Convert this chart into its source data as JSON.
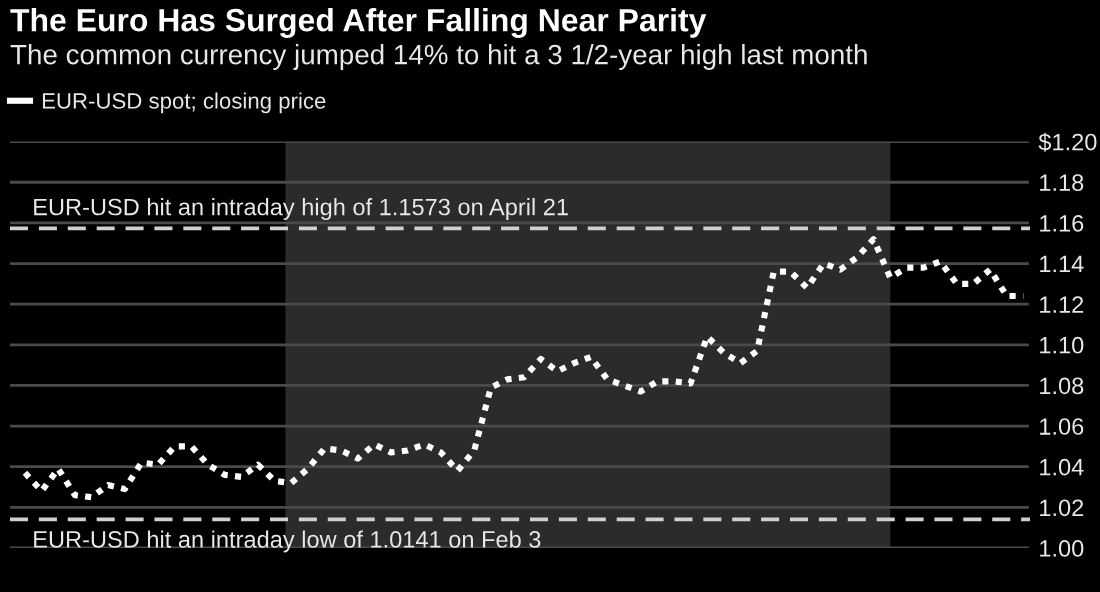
{
  "chart_data": {
    "type": "line",
    "title": "The Euro Has Surged After Falling Near Parity",
    "subtitle": "The common currency jumped 14% to hit a 3 1/2-year high last month",
    "categories": [
      null,
      null,
      null,
      null,
      null,
      null,
      null,
      null,
      null,
      null,
      null,
      null,
      null,
      null,
      null,
      null,
      null,
      null,
      null,
      null,
      null,
      null,
      null,
      null,
      null,
      null,
      null,
      null,
      null,
      null,
      null,
      null,
      null,
      null,
      null,
      null,
      null,
      null,
      null,
      null,
      null,
      null,
      null,
      null,
      null,
      null,
      null,
      null,
      null,
      null,
      null,
      null,
      null,
      null,
      null,
      null,
      null,
      null,
      null,
      null,
      null
    ],
    "series": [
      {
        "name": "EUR-USD spot; closing price",
        "color": "#ffffff",
        "values": [
          1.037,
          1.028,
          1.039,
          1.026,
          1.025,
          1.031,
          1.029,
          1.042,
          1.041,
          1.05,
          1.05,
          1.041,
          1.036,
          1.035,
          1.041,
          1.033,
          1.032,
          1.039,
          1.049,
          1.048,
          1.044,
          1.051,
          1.047,
          1.048,
          1.051,
          1.047,
          1.038,
          1.048,
          1.079,
          1.083,
          1.084,
          1.093,
          1.087,
          1.091,
          1.094,
          1.083,
          1.08,
          1.077,
          1.082,
          1.082,
          1.081,
          1.104,
          1.096,
          1.091,
          1.097,
          1.136,
          1.136,
          1.128,
          1.14,
          1.137,
          1.143,
          1.152,
          1.133,
          1.138,
          1.138,
          1.141,
          1.13,
          1.13,
          1.137,
          1.124,
          1.124
        ]
      }
    ],
    "line_style": "dotted",
    "marker": "none",
    "ylim": [
      1.0,
      1.2
    ],
    "yticks": [
      {
        "value": 1.0,
        "label": "1.00"
      },
      1.02,
      1.04,
      1.06,
      1.08,
      {
        "value": 1.1,
        "label": "1.10"
      },
      1.12,
      1.14,
      1.16,
      1.18,
      {
        "value": 1.2,
        "label": "$1.20"
      }
    ],
    "ref_lines": [
      {
        "axis": "y",
        "value": 1.1573,
        "label": "EUR-USD hit an intraday high of 1.1573 on April 21",
        "color": "#d0d0d0",
        "line_style": "dashed"
      },
      {
        "axis": "y",
        "value": 1.0141,
        "label": "EUR-USD hit an intraday low of 1.0141 on Feb 3",
        "color": "#d0d0d0",
        "line_style": "dashed"
      }
    ],
    "grid": "y",
    "legend": "top left",
    "tick_labels": "y"
  }
}
